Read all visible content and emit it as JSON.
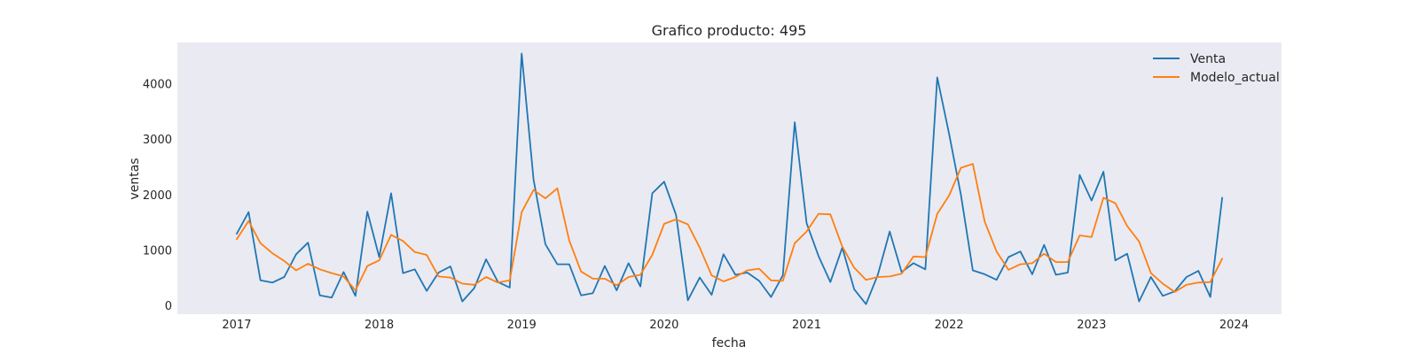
{
  "chart_data": {
    "type": "line",
    "title": "Grafico producto: 495",
    "xlabel": "fecha",
    "ylabel": "ventas",
    "xlim": [
      "2016-08-01",
      "2024-05-01"
    ],
    "ylim": [
      -150,
      4750
    ],
    "x_ticks": [
      "2017",
      "2018",
      "2019",
      "2020",
      "2021",
      "2022",
      "2023",
      "2024"
    ],
    "y_ticks": [
      0,
      1000,
      2000,
      3000,
      4000
    ],
    "grid": false,
    "background": "#eaeaf2",
    "legend_position": "top-right",
    "x": [
      "2017-01",
      "2017-02",
      "2017-03",
      "2017-04",
      "2017-05",
      "2017-06",
      "2017-07",
      "2017-08",
      "2017-09",
      "2017-10",
      "2017-11",
      "2017-12",
      "2018-01",
      "2018-02",
      "2018-03",
      "2018-04",
      "2018-05",
      "2018-06",
      "2018-07",
      "2018-08",
      "2018-09",
      "2018-10",
      "2018-11",
      "2018-12",
      "2019-01",
      "2019-02",
      "2019-03",
      "2019-04",
      "2019-05",
      "2019-06",
      "2019-07",
      "2019-08",
      "2019-09",
      "2019-10",
      "2019-11",
      "2019-12",
      "2020-01",
      "2020-02",
      "2020-03",
      "2020-04",
      "2020-05",
      "2020-06",
      "2020-07",
      "2020-08",
      "2020-09",
      "2020-10",
      "2020-11",
      "2020-12",
      "2021-01",
      "2021-02",
      "2021-03",
      "2021-04",
      "2021-05",
      "2021-06",
      "2021-07",
      "2021-08",
      "2021-09",
      "2021-10",
      "2021-11",
      "2021-12",
      "2022-01",
      "2022-02",
      "2022-03",
      "2022-04",
      "2022-05",
      "2022-06",
      "2022-07",
      "2022-08",
      "2022-09",
      "2022-10",
      "2022-11",
      "2022-12",
      "2023-01",
      "2023-02",
      "2023-03",
      "2023-04",
      "2023-05",
      "2023-06",
      "2023-07",
      "2023-08",
      "2023-09",
      "2023-10",
      "2023-11",
      "2023-12"
    ],
    "series": [
      {
        "name": "Venta",
        "color": "#1f77b4",
        "values": [
          1300,
          1690,
          460,
          420,
          520,
          930,
          1140,
          190,
          150,
          610,
          180,
          1700,
          880,
          2030,
          590,
          660,
          270,
          600,
          710,
          80,
          320,
          840,
          430,
          330,
          4550,
          2280,
          1110,
          750,
          750,
          190,
          230,
          720,
          280,
          770,
          350,
          2030,
          2240,
          1640,
          100,
          510,
          200,
          930,
          560,
          600,
          450,
          160,
          550,
          3310,
          1490,
          900,
          430,
          1050,
          300,
          30,
          560,
          1340,
          610,
          770,
          660,
          4120,
          3100,
          2000,
          640,
          570,
          470,
          880,
          980,
          570,
          1100,
          560,
          600,
          2360,
          1900,
          2420,
          820,
          940,
          80,
          520,
          180,
          260,
          520,
          630,
          160,
          1950
        ]
      },
      {
        "name": "Modelo_actual",
        "color": "#ff7f0e",
        "values": [
          1200,
          1530,
          1130,
          950,
          810,
          640,
          760,
          660,
          590,
          530,
          280,
          720,
          820,
          1280,
          1170,
          970,
          920,
          530,
          510,
          400,
          380,
          520,
          420,
          460,
          1690,
          2090,
          1940,
          2120,
          1180,
          620,
          490,
          490,
          370,
          520,
          560,
          920,
          1480,
          1560,
          1470,
          1050,
          550,
          440,
          520,
          640,
          670,
          460,
          450,
          1130,
          1340,
          1660,
          1650,
          1070,
          690,
          470,
          520,
          530,
          580,
          890,
          880,
          1660,
          1990,
          2490,
          2560,
          1520,
          980,
          650,
          750,
          770,
          940,
          790,
          790,
          1270,
          1240,
          1950,
          1850,
          1440,
          1160,
          590,
          400,
          250,
          380,
          420,
          430,
          850
        ]
      }
    ]
  }
}
